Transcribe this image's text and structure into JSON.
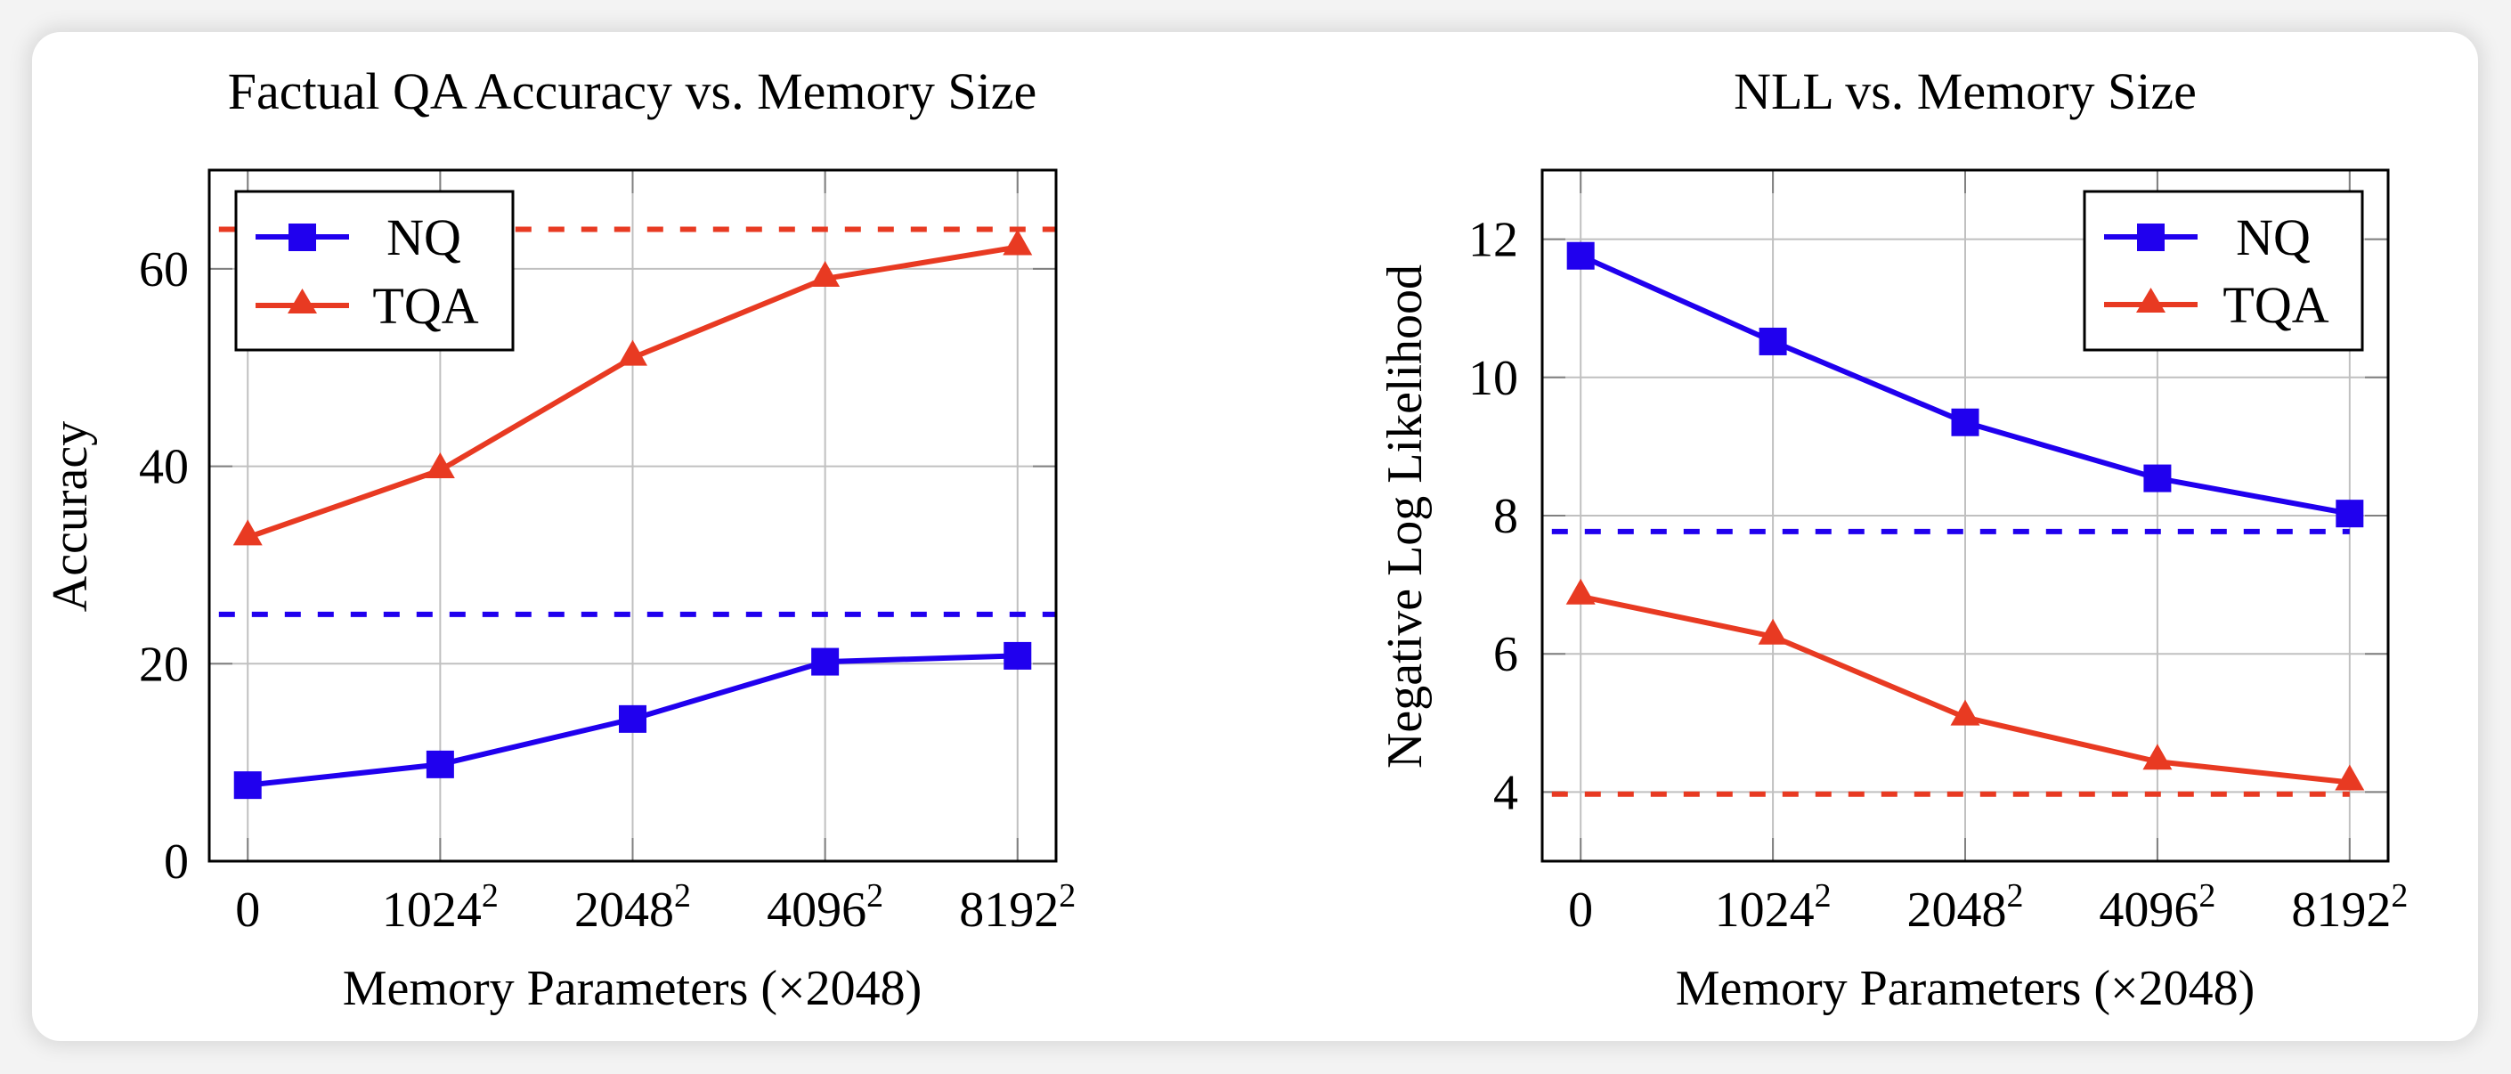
{
  "colors": {
    "nq": "#2000ee",
    "tqa": "#e83a22",
    "grid": "#c0c0c0",
    "axis": "#000000"
  },
  "chart_data": [
    {
      "type": "line",
      "title": "Factual QA Accuracy vs. Memory Size",
      "xlabel": "Memory Parameters (×2048)",
      "ylabel": "Accuracy",
      "categories": [
        {
          "base": "0",
          "sup": ""
        },
        {
          "base": "1024",
          "sup": "2"
        },
        {
          "base": "2048",
          "sup": "2"
        },
        {
          "base": "4096",
          "sup": "2"
        },
        {
          "base": "8192",
          "sup": "2"
        }
      ],
      "xlim": [
        -0.2,
        4.2
      ],
      "ylim": [
        0,
        70
      ],
      "yticks": [
        0,
        20,
        40,
        60
      ],
      "grid": true,
      "legend_position": "top-left",
      "series": [
        {
          "name": "NQ",
          "color_key": "nq",
          "marker": "square",
          "values": [
            7.7,
            9.8,
            14.4,
            20.2,
            20.8
          ]
        },
        {
          "name": "TQA",
          "color_key": "tqa",
          "marker": "triangle",
          "values": [
            32.8,
            39.6,
            51.0,
            59.0,
            62.2
          ]
        }
      ],
      "reference_lines": [
        {
          "series": "TQA",
          "color_key": "tqa",
          "y": 64.0,
          "style": "dashed",
          "x_from": -0.15,
          "x_to": 4.2
        },
        {
          "series": "NQ",
          "color_key": "nq",
          "y": 25.0,
          "style": "dashed",
          "x_from": -0.15,
          "x_to": 4.2
        }
      ]
    },
    {
      "type": "line",
      "title": "NLL vs. Memory Size",
      "xlabel": "Memory Parameters (×2048)",
      "ylabel": "Negative Log Likelihood",
      "categories": [
        {
          "base": "0",
          "sup": ""
        },
        {
          "base": "1024",
          "sup": "2"
        },
        {
          "base": "2048",
          "sup": "2"
        },
        {
          "base": "4096",
          "sup": "2"
        },
        {
          "base": "8192",
          "sup": "2"
        }
      ],
      "xlim": [
        -0.2,
        4.2
      ],
      "ylim": [
        3,
        13
      ],
      "yticks": [
        4,
        6,
        8,
        10,
        12
      ],
      "grid": true,
      "legend_position": "top-right",
      "series": [
        {
          "name": "NQ",
          "color_key": "nq",
          "marker": "square",
          "values": [
            11.76,
            10.52,
            9.35,
            8.54,
            8.03
          ]
        },
        {
          "name": "TQA",
          "color_key": "tqa",
          "marker": "triangle",
          "values": [
            6.83,
            6.25,
            5.08,
            4.44,
            4.14
          ]
        }
      ],
      "reference_lines": [
        {
          "series": "NQ",
          "color_key": "nq",
          "y": 7.77,
          "style": "dashed",
          "x_from": -0.15,
          "x_to": 4.0
        },
        {
          "series": "TQA",
          "color_key": "tqa",
          "y": 3.97,
          "style": "dashed",
          "x_from": -0.15,
          "x_to": 4.0
        }
      ]
    }
  ]
}
